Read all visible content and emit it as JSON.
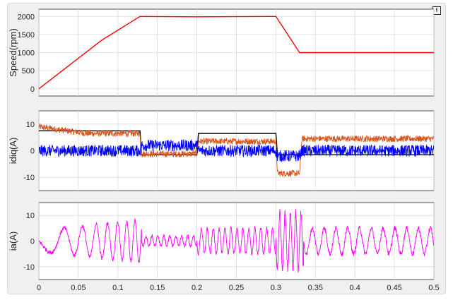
{
  "figure": {
    "dock_icon": "undock-arrow-icon"
  },
  "chart_data": [
    {
      "type": "line",
      "ylabel": "Speed(rpm)",
      "xlim": [
        0,
        0.5
      ],
      "ylim": [
        -200,
        2200
      ],
      "xticks": [
        0,
        0.05,
        0.1,
        0.15,
        0.2,
        0.25,
        0.3,
        0.35,
        0.4,
        0.45,
        0.5
      ],
      "yticks": [
        0,
        500,
        1000,
        1500,
        2000
      ],
      "ytick_labels": [
        "0",
        "500",
        "1000",
        "1500",
        "2000"
      ],
      "grid": true,
      "series": [
        {
          "color": "#ff0000",
          "x": [
            0,
            0.08,
            0.128,
            0.2,
            0.3,
            0.33,
            0.335,
            0.5
          ],
          "y": [
            0,
            1350,
            2000,
            1990,
            2000,
            1000,
            1000,
            1000
          ]
        }
      ]
    },
    {
      "type": "line",
      "ylabel": "idiq(A)",
      "xlim": [
        0,
        0.5
      ],
      "ylim": [
        -15,
        15
      ],
      "xticks": [
        0,
        0.05,
        0.1,
        0.15,
        0.2,
        0.25,
        0.3,
        0.35,
        0.4,
        0.45,
        0.5
      ],
      "yticks": [
        -10,
        0,
        10
      ],
      "ytick_labels": [
        "-10",
        "0",
        "10"
      ],
      "grid": true,
      "series": [
        {
          "color": "#000000",
          "x": [
            0,
            0.128,
            0.13,
            0.2,
            0.202,
            0.3,
            0.302,
            0.5
          ],
          "y": [
            7.5,
            7.5,
            -1.5,
            -1.5,
            6.5,
            6.5,
            -1.5,
            -1.5
          ]
        },
        {
          "color": "#d95319",
          "noise": 1.2,
          "x": [
            0,
            0.06,
            0.128,
            0.13,
            0.2,
            0.202,
            0.3,
            0.302,
            0.33,
            0.333,
            0.5
          ],
          "y": [
            9,
            6.5,
            6.5,
            -1.2,
            -1.2,
            3.5,
            3.5,
            -8.5,
            -8.5,
            4.5,
            4.5
          ]
        },
        {
          "color": "#0000ff",
          "noise": 2.2,
          "x": [
            0,
            0.1,
            0.128,
            0.13,
            0.2,
            0.202,
            0.3,
            0.302,
            0.33,
            0.333,
            0.5
          ],
          "y": [
            0,
            0,
            0,
            2,
            2,
            0,
            0,
            -2,
            -2,
            0,
            0
          ]
        }
      ]
    },
    {
      "type": "line",
      "ylabel": "ia(A)",
      "xlim": [
        0,
        0.5
      ],
      "ylim": [
        -15,
        15
      ],
      "xticks": [
        0,
        0.05,
        0.1,
        0.15,
        0.2,
        0.25,
        0.3,
        0.35,
        0.4,
        0.45,
        0.5
      ],
      "xtick_labels": [
        "0",
        "0.05",
        "0.1",
        "0.15",
        "0.2",
        "0.25",
        "0.3",
        "0.35",
        "0.4",
        "0.45",
        "0.5"
      ],
      "yticks": [
        -10,
        0,
        10
      ],
      "ytick_labels": [
        "-10",
        "0",
        "10"
      ],
      "grid": true,
      "series": [
        {
          "color": "#ff00ff",
          "segments": [
            {
              "t0": 0.0,
              "t1": 0.13,
              "amp": [
                4,
                8.5
              ],
              "freq": [
                12,
                105
              ],
              "noise": 0.8
            },
            {
              "t0": 0.13,
              "t1": 0.2,
              "amp": [
                2,
                2
              ],
              "freq": [
                133,
                133
              ],
              "noise": 0.6
            },
            {
              "t0": 0.2,
              "t1": 0.3,
              "amp": [
                5,
                5
              ],
              "freq": [
                133,
                133
              ],
              "noise": 0.8
            },
            {
              "t0": 0.3,
              "t1": 0.335,
              "amp": [
                11,
                11
              ],
              "freq": [
                150,
                150
              ],
              "noise": 1.5
            },
            {
              "t0": 0.335,
              "t1": 0.5,
              "amp": [
                5,
                5
              ],
              "freq": [
                67,
                67
              ],
              "noise": 1.0
            }
          ]
        }
      ]
    }
  ]
}
